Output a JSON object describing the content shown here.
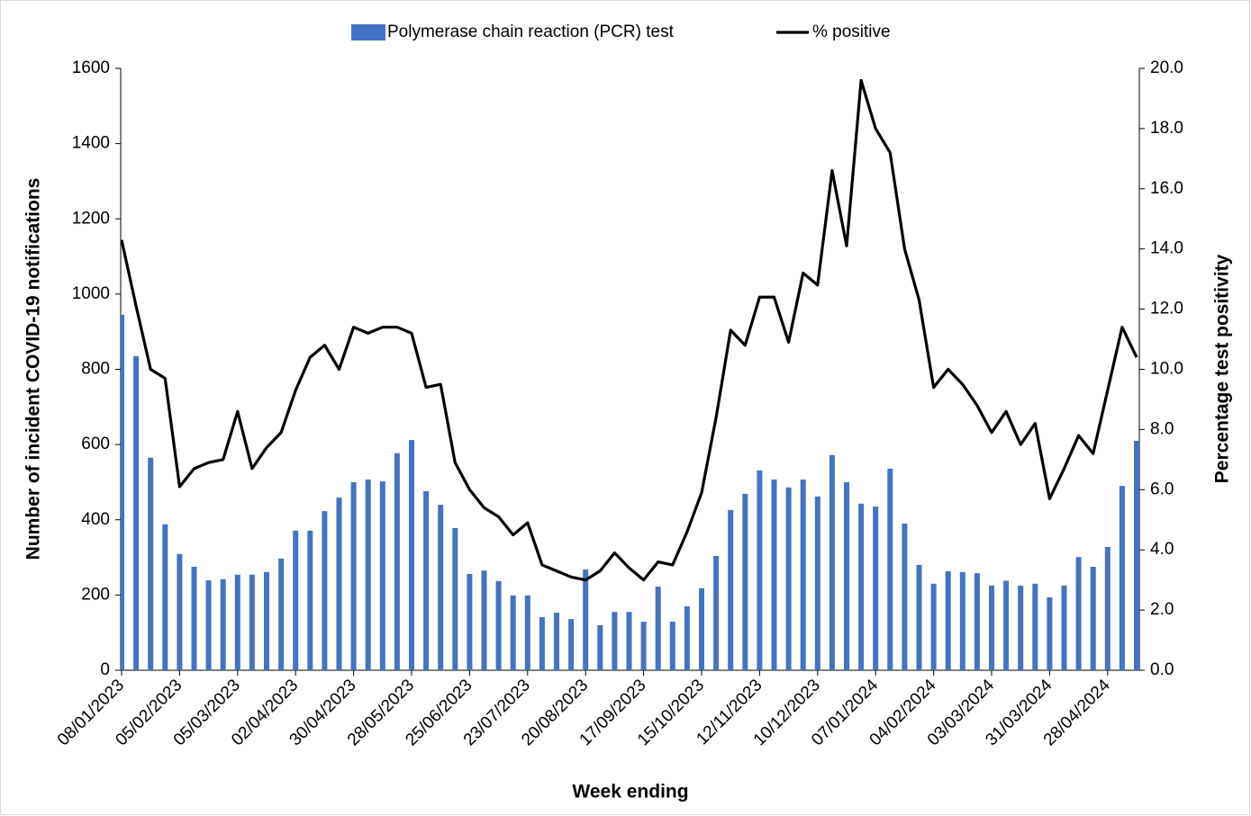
{
  "chart_data": {
    "type": "bar",
    "categories": [
      "08/01/2023",
      null,
      null,
      null,
      "05/02/2023",
      null,
      null,
      null,
      "05/03/2023",
      null,
      null,
      null,
      "02/04/2023",
      null,
      null,
      null,
      "30/04/2023",
      null,
      null,
      null,
      "28/05/2023",
      null,
      null,
      null,
      "25/06/2023",
      null,
      null,
      null,
      "23/07/2023",
      null,
      null,
      null,
      "20/08/2023",
      null,
      null,
      null,
      "17/09/2023",
      null,
      null,
      null,
      "15/10/2023",
      null,
      null,
      null,
      "12/11/2023",
      null,
      null,
      null,
      "10/12/2023",
      null,
      null,
      null,
      "07/01/2024",
      null,
      null,
      null,
      "04/02/2024",
      null,
      null,
      null,
      "03/03/2024",
      null,
      null,
      null,
      "31/03/2024",
      null,
      null,
      null,
      "28/04/2024",
      null,
      null
    ],
    "series": [
      {
        "name": "Polymerase chain reaction (PCR) test",
        "type": "bar",
        "color": "#4472c4",
        "values": [
          945,
          835,
          565,
          388,
          309,
          275,
          239,
          242,
          254,
          254,
          261,
          297,
          371,
          371,
          423,
          459,
          500,
          507,
          502,
          577,
          612,
          476,
          440,
          378,
          256,
          265,
          237,
          199,
          199,
          141,
          153,
          136,
          268,
          120,
          155,
          155,
          129,
          222,
          129,
          170,
          218,
          304,
          426,
          469,
          531,
          507,
          486,
          507,
          462,
          572,
          500,
          443,
          435,
          536,
          390,
          280,
          230,
          263,
          261,
          258,
          225,
          238,
          225,
          230,
          194,
          225,
          301,
          275,
          328,
          490,
          610
        ]
      },
      {
        "name": "% positive",
        "type": "line",
        "axis": "y2",
        "color": "#000000",
        "values": [
          14.3,
          12.1,
          10.0,
          9.7,
          6.1,
          6.7,
          6.9,
          7.0,
          8.6,
          6.7,
          7.4,
          7.9,
          9.3,
          10.4,
          10.8,
          10.0,
          11.4,
          11.2,
          11.4,
          11.4,
          11.2,
          9.4,
          9.5,
          6.9,
          6.0,
          5.4,
          5.1,
          4.5,
          4.9,
          3.5,
          3.3,
          3.1,
          3.0,
          3.3,
          3.9,
          3.4,
          3.0,
          3.6,
          3.5,
          4.6,
          5.9,
          8.4,
          11.3,
          10.8,
          12.4,
          12.4,
          10.9,
          13.2,
          12.8,
          16.6,
          14.1,
          19.6,
          18.0,
          17.2,
          14.0,
          12.3,
          9.4,
          10.0,
          9.5,
          8.8,
          7.9,
          8.6,
          7.5,
          8.2,
          5.7,
          6.7,
          7.8,
          7.2,
          9.3,
          11.4,
          10.4
        ]
      }
    ],
    "x_label": "Week ending",
    "y_label": "Number of incident COVID-19 notifications",
    "y2_label": "Percentage test positivity",
    "ylim": [
      0,
      1600
    ],
    "yticks": [
      0,
      200,
      400,
      600,
      800,
      1000,
      1200,
      1400,
      1600
    ],
    "y2lim": [
      0,
      20
    ],
    "y2ticks": [
      {
        "value": 0,
        "label": "0.0"
      },
      {
        "value": 2,
        "label": "2.0"
      },
      {
        "value": 4,
        "label": "4.0"
      },
      {
        "value": 6,
        "label": "6.0"
      },
      {
        "value": 8,
        "label": "8.0"
      },
      {
        "value": 10,
        "label": "10.0"
      },
      {
        "value": 12,
        "label": "12.0"
      },
      {
        "value": 14,
        "label": "14.0"
      },
      {
        "value": 16,
        "label": "16.0"
      },
      {
        "value": 18,
        "label": "18.0"
      },
      {
        "value": 20,
        "label": "20.0"
      }
    ],
    "legend": "top"
  }
}
